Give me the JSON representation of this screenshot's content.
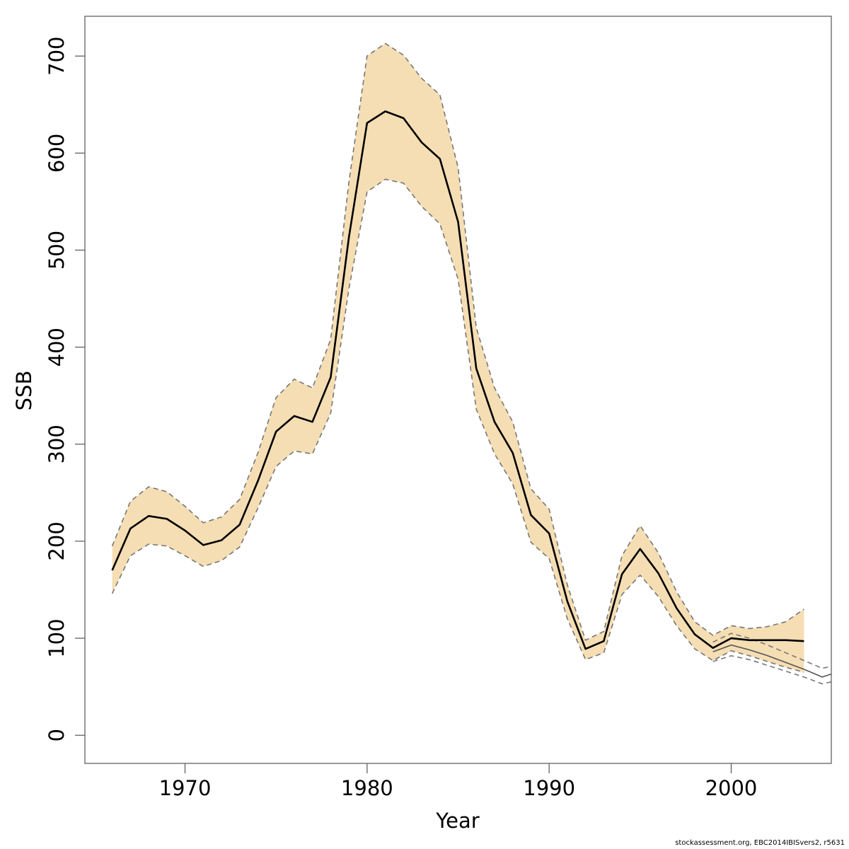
{
  "chart_data": {
    "type": "line",
    "xlabel": "Year",
    "ylabel": "SSB",
    "xlim": [
      1964.5,
      2005.5
    ],
    "ylim": [
      -29,
      741
    ],
    "xticks": [
      1970,
      1980,
      1990,
      2000
    ],
    "yticks": [
      0,
      100,
      200,
      300,
      400,
      500,
      600,
      700
    ],
    "grid": false,
    "colors": {
      "band_fill": "#f5deb3",
      "main_line": "#000000",
      "ref_line": "#555555",
      "ref_dashed": "#777777",
      "frame": "#555555"
    },
    "series": [
      {
        "role": "estimate",
        "x": [
          1966,
          1967,
          1968,
          1969,
          1970,
          1971,
          1972,
          1973,
          1974,
          1975,
          1976,
          1977,
          1978,
          1979,
          1980,
          1981,
          1982,
          1983,
          1984,
          1985,
          1986,
          1987,
          1988,
          1989,
          1990,
          1991,
          1992,
          1993,
          1994,
          1995,
          1996,
          1997,
          1998,
          1999,
          2000,
          2001,
          2002,
          2003,
          2004
        ],
        "y": [
          170,
          213,
          226,
          223,
          211,
          196,
          201,
          217,
          262,
          313,
          329,
          323,
          369,
          513,
          631,
          643,
          636,
          611,
          594,
          529,
          378,
          323,
          291,
          227,
          208,
          138,
          89,
          97,
          166,
          192,
          167,
          131,
          104,
          90,
          100,
          98,
          98,
          98,
          97
        ]
      },
      {
        "role": "interval-upper",
        "x": [
          1966,
          1967,
          1968,
          1969,
          1970,
          1971,
          1972,
          1973,
          1974,
          1975,
          1976,
          1977,
          1978,
          1979,
          1980,
          1981,
          1982,
          1983,
          1984,
          1985,
          1986,
          1987,
          1988,
          1989,
          1990,
          1991,
          1992,
          1993,
          1994,
          1995,
          1996,
          1997,
          1998,
          1999,
          2000,
          2001,
          2002,
          2003,
          2004
        ],
        "y": [
          195,
          241,
          256,
          251,
          236,
          219,
          225,
          243,
          291,
          348,
          367,
          358,
          408,
          570,
          700,
          713,
          701,
          677,
          660,
          585,
          420,
          358,
          323,
          254,
          233,
          155,
          98,
          107,
          185,
          216,
          188,
          148,
          117,
          103,
          113,
          110,
          112,
          117,
          130
        ]
      },
      {
        "role": "interval-lower",
        "x": [
          1966,
          1967,
          1968,
          1969,
          1970,
          1971,
          1972,
          1973,
          1974,
          1975,
          1976,
          1977,
          1978,
          1979,
          1980,
          1981,
          1982,
          1983,
          1984,
          1985,
          1986,
          1987,
          1988,
          1989,
          1990,
          1991,
          1992,
          1993,
          1994,
          1995,
          1996,
          1997,
          1998,
          1999,
          2000,
          2001,
          2002,
          2003,
          2004
        ],
        "y": [
          146,
          185,
          197,
          195,
          185,
          174,
          180,
          194,
          234,
          277,
          293,
          290,
          332,
          460,
          560,
          573,
          569,
          545,
          527,
          470,
          336,
          290,
          259,
          199,
          182,
          120,
          78,
          85,
          145,
          165,
          143,
          113,
          89,
          77,
          87,
          82,
          76,
          70,
          65
        ]
      },
      {
        "role": "reference",
        "x": [
          1999,
          2000,
          2001,
          2002,
          2003,
          2004,
          2005,
          2005.5
        ],
        "y": [
          86,
          93,
          88,
          82,
          75,
          68,
          60,
          63
        ]
      },
      {
        "role": "reference-upper",
        "x": [
          1999,
          2000,
          2001,
          2002,
          2003,
          2004,
          2005,
          2005.5
        ],
        "y": [
          96,
          105,
          100,
          93,
          85,
          77,
          69,
          71
        ]
      },
      {
        "role": "reference-lower",
        "x": [
          1999,
          2000,
          2001,
          2002,
          2003,
          2004,
          2005,
          2005.5
        ],
        "y": [
          76,
          82,
          78,
          72,
          66,
          60,
          53,
          55
        ]
      }
    ]
  },
  "footer": {
    "source_note": "stockassessment.org, EBC2014IBISvers2, r5631"
  }
}
